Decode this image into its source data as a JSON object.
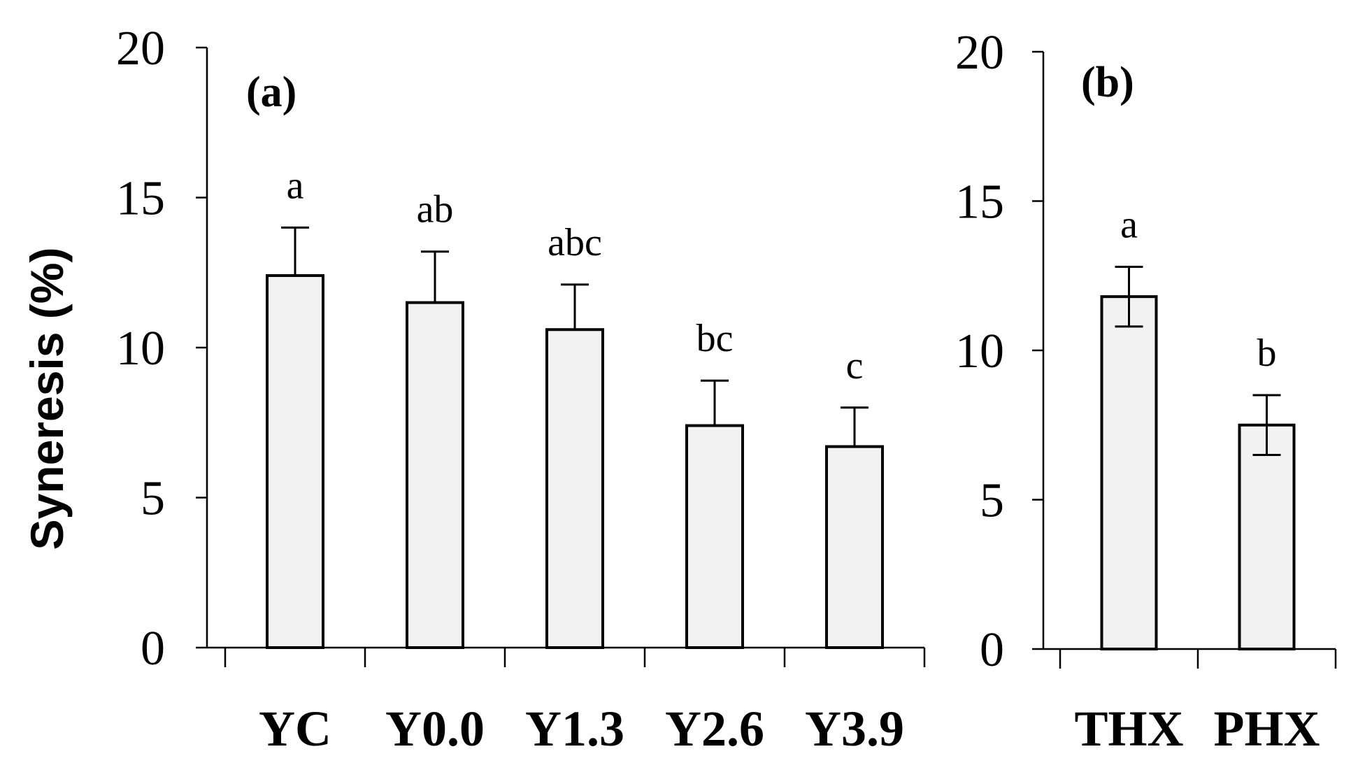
{
  "chart_data": [
    {
      "type": "bar",
      "panel_label": "(a)",
      "ylabel": "Syneresis (%)",
      "ylim": [
        0,
        20
      ],
      "yticks": [
        "0",
        "5",
        "10",
        "15",
        "20"
      ],
      "categories": [
        "YC",
        "Y0.0",
        "Y1.3",
        "Y2.6",
        "Y3.9"
      ],
      "values": [
        12.4,
        11.5,
        10.6,
        7.4,
        6.7
      ],
      "error_upper": [
        1.6,
        1.7,
        1.5,
        1.5,
        1.3
      ],
      "significance_letters": [
        "a",
        "ab",
        "abc",
        "bc",
        "c"
      ],
      "grid": false,
      "error_bars": "upper"
    },
    {
      "type": "bar",
      "panel_label": "(b)",
      "ylim": [
        0,
        20
      ],
      "yticks": [
        "0",
        "5",
        "10",
        "15",
        "20"
      ],
      "categories": [
        "THX",
        "PHX"
      ],
      "values": [
        11.8,
        7.5
      ],
      "error_upper": [
        1.0,
        1.0
      ],
      "error_lower": [
        1.0,
        1.0
      ],
      "significance_letters": [
        "a",
        "b"
      ],
      "grid": false,
      "error_bars": "both"
    }
  ]
}
